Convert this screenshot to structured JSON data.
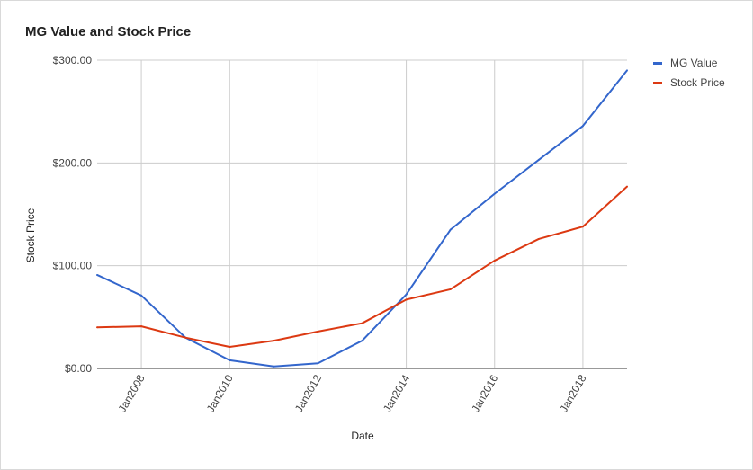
{
  "chart_data": {
    "type": "line",
    "title": "MG Value and Stock Price",
    "xlabel": "Date",
    "ylabel": "Stock Price",
    "ylim": [
      0,
      300
    ],
    "yticks": [
      "$300.00",
      "$200.00",
      "$100.00",
      "$0.00"
    ],
    "ytick_values": [
      300,
      200,
      100,
      0
    ],
    "xticks": [
      "Jan2008",
      "Jan2010",
      "Jan2012",
      "Jan2014",
      "Jan2016",
      "Jan2018"
    ],
    "xtick_years": [
      2008,
      2010,
      2012,
      2014,
      2016,
      2018
    ],
    "xlim": [
      2007,
      2019
    ],
    "grid": true,
    "legend_position": "right",
    "x": [
      2007,
      2008,
      2009,
      2010,
      2011,
      2012,
      2013,
      2014,
      2015,
      2016,
      2017,
      2018,
      2019
    ],
    "series": [
      {
        "name": "MG Value",
        "color": "#3366cc",
        "values": [
          91,
          71,
          30,
          8,
          2,
          5,
          27,
          72,
          135,
          170,
          203,
          236,
          290
        ]
      },
      {
        "name": "Stock Price",
        "color": "#dc3912",
        "values": [
          40,
          41,
          30,
          21,
          27,
          36,
          44,
          67,
          77,
          105,
          126,
          138,
          177
        ]
      }
    ]
  }
}
